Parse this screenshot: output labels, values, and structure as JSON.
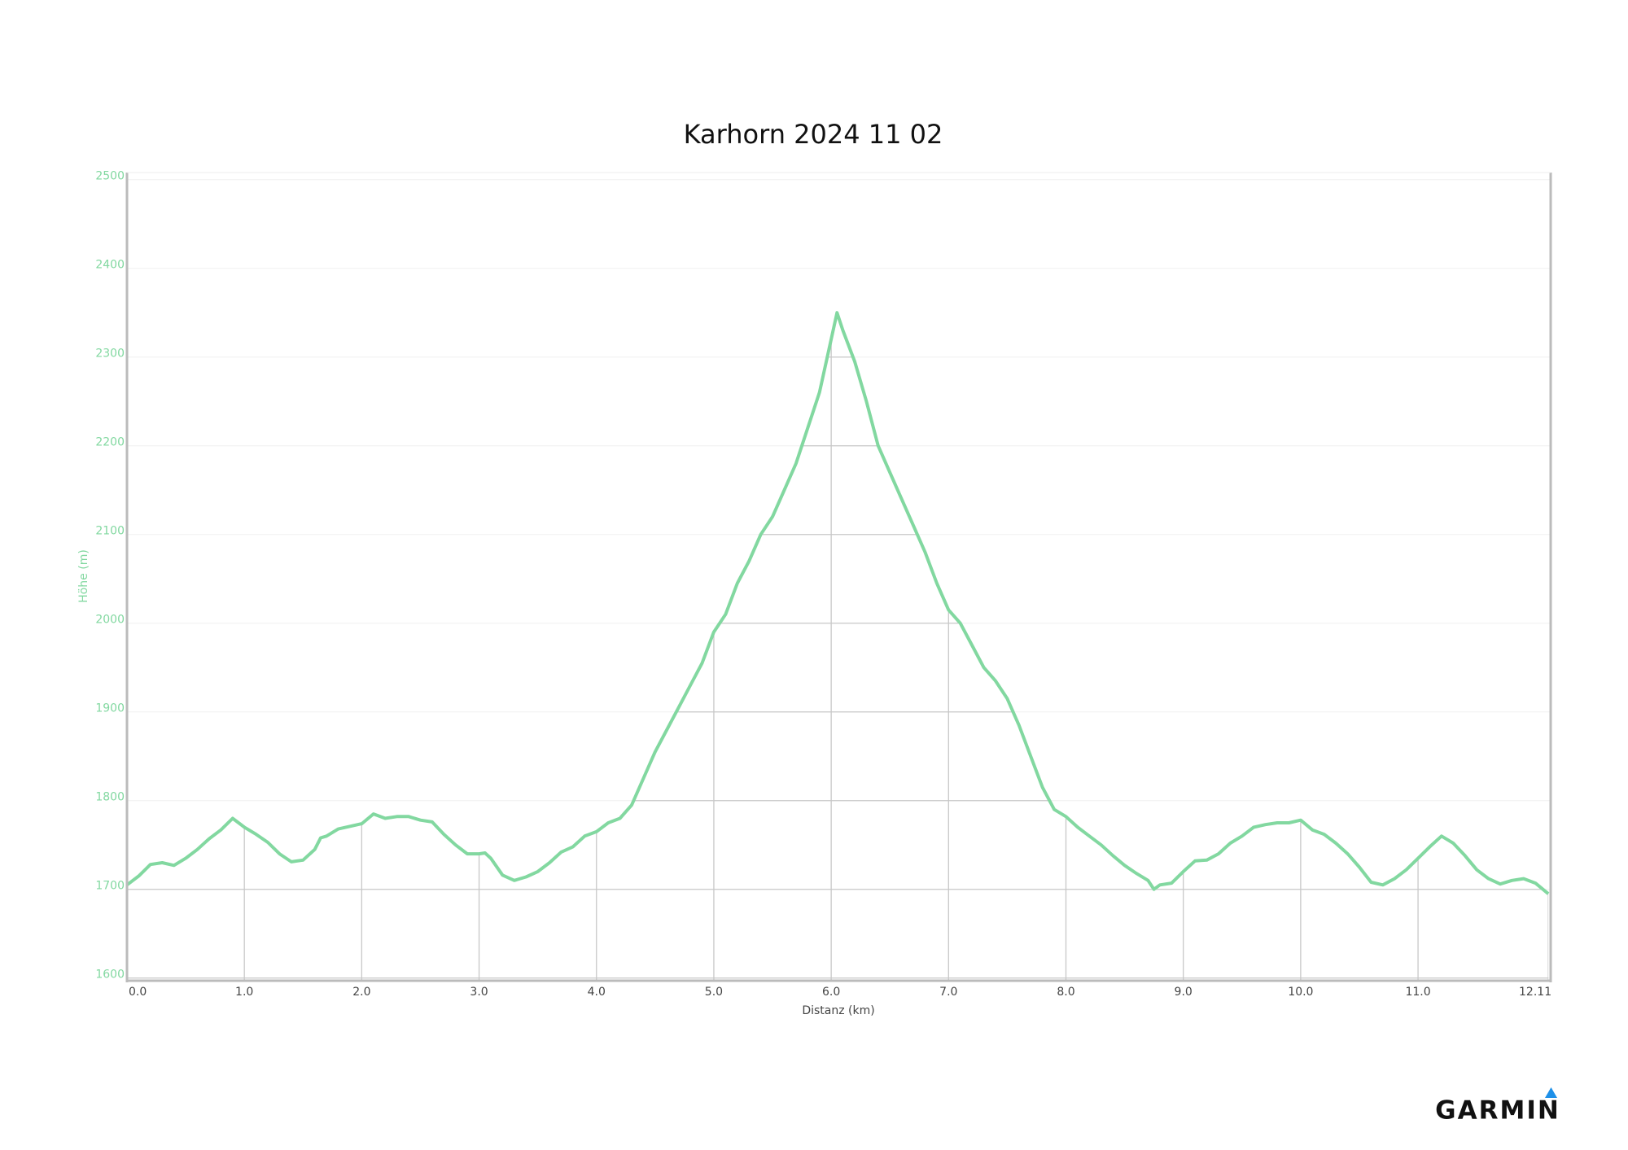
{
  "chart_data": {
    "type": "line",
    "title": "Karhorn 2024 11 02",
    "x_label": "Distanz (km)",
    "y_label": "Höhe (m)",
    "x": [
      0.0,
      0.1,
      0.2,
      0.3,
      0.4,
      0.5,
      0.6,
      0.7,
      0.8,
      0.9,
      1.0,
      1.1,
      1.2,
      1.3,
      1.4,
      1.5,
      1.6,
      1.65,
      1.7,
      1.8,
      1.9,
      2.0,
      2.1,
      2.2,
      2.3,
      2.4,
      2.5,
      2.6,
      2.7,
      2.8,
      2.9,
      3.0,
      3.05,
      3.1,
      3.2,
      3.3,
      3.4,
      3.5,
      3.6,
      3.7,
      3.8,
      3.9,
      4.0,
      4.1,
      4.2,
      4.3,
      4.4,
      4.5,
      4.6,
      4.7,
      4.8,
      4.9,
      5.0,
      5.1,
      5.2,
      5.3,
      5.4,
      5.5,
      5.6,
      5.7,
      5.8,
      5.9,
      6.0,
      6.05,
      6.1,
      6.2,
      6.3,
      6.4,
      6.5,
      6.6,
      6.7,
      6.8,
      6.9,
      7.0,
      7.1,
      7.2,
      7.3,
      7.4,
      7.5,
      7.6,
      7.7,
      7.8,
      7.9,
      8.0,
      8.1,
      8.2,
      8.3,
      8.4,
      8.5,
      8.6,
      8.7,
      8.75,
      8.8,
      8.9,
      9.0,
      9.1,
      9.2,
      9.3,
      9.4,
      9.5,
      9.6,
      9.7,
      9.8,
      9.9,
      10.0,
      10.1,
      10.2,
      10.3,
      10.4,
      10.5,
      10.6,
      10.7,
      10.8,
      10.9,
      11.0,
      11.1,
      11.2,
      11.3,
      11.4,
      11.5,
      11.6,
      11.7,
      11.8,
      11.9,
      12.0,
      12.11
    ],
    "series": [
      {
        "name": "Höhe",
        "color": "#82d8a0",
        "values": [
          1705,
          1715,
          1728,
          1730,
          1727,
          1735,
          1745,
          1757,
          1767,
          1780,
          1770,
          1762,
          1753,
          1740,
          1731,
          1733,
          1745,
          1758,
          1760,
          1768,
          1771,
          1774,
          1785,
          1780,
          1782,
          1782,
          1778,
          1776,
          1762,
          1750,
          1740,
          1740,
          1741,
          1735,
          1716,
          1710,
          1714,
          1720,
          1730,
          1742,
          1748,
          1760,
          1765,
          1775,
          1780,
          1795,
          1825,
          1855,
          1880,
          1905,
          1930,
          1955,
          1990,
          2010,
          2045,
          2070,
          2100,
          2120,
          2150,
          2180,
          2220,
          2260,
          2320,
          2350,
          2330,
          2295,
          2250,
          2200,
          2170,
          2140,
          2110,
          2080,
          2045,
          2015,
          2000,
          1975,
          1950,
          1935,
          1915,
          1885,
          1850,
          1815,
          1790,
          1782,
          1770,
          1760,
          1750,
          1738,
          1727,
          1718,
          1710,
          1700,
          1705,
          1707,
          1720,
          1732,
          1733,
          1740,
          1752,
          1760,
          1770,
          1773,
          1775,
          1775,
          1778,
          1767,
          1762,
          1752,
          1740,
          1725,
          1708,
          1705,
          1712,
          1722,
          1735,
          1748,
          1760,
          1752,
          1738,
          1722,
          1712,
          1706,
          1710,
          1712,
          1707,
          1695
        ]
      }
    ],
    "xlim": [
      0,
      12.13
    ],
    "ylim": [
      1597,
      2508
    ],
    "xticks": [
      {
        "value": 0,
        "label": "0.0"
      },
      {
        "value": 1,
        "label": "1.0"
      },
      {
        "value": 2,
        "label": "2.0"
      },
      {
        "value": 3,
        "label": "3.0"
      },
      {
        "value": 4,
        "label": "4.0"
      },
      {
        "value": 5,
        "label": "5.0"
      },
      {
        "value": 6,
        "label": "6.0"
      },
      {
        "value": 7,
        "label": "7.0"
      },
      {
        "value": 8,
        "label": "8.0"
      },
      {
        "value": 9,
        "label": "9.0"
      },
      {
        "value": 10,
        "label": "10.0"
      },
      {
        "value": 11,
        "label": "11.0"
      },
      12.11
    ],
    "yticks": [
      1600,
      1700,
      1800,
      1900,
      2000,
      2100,
      2200,
      2300,
      2400,
      2500
    ],
    "grid": true
  },
  "brand": "GARMIN"
}
